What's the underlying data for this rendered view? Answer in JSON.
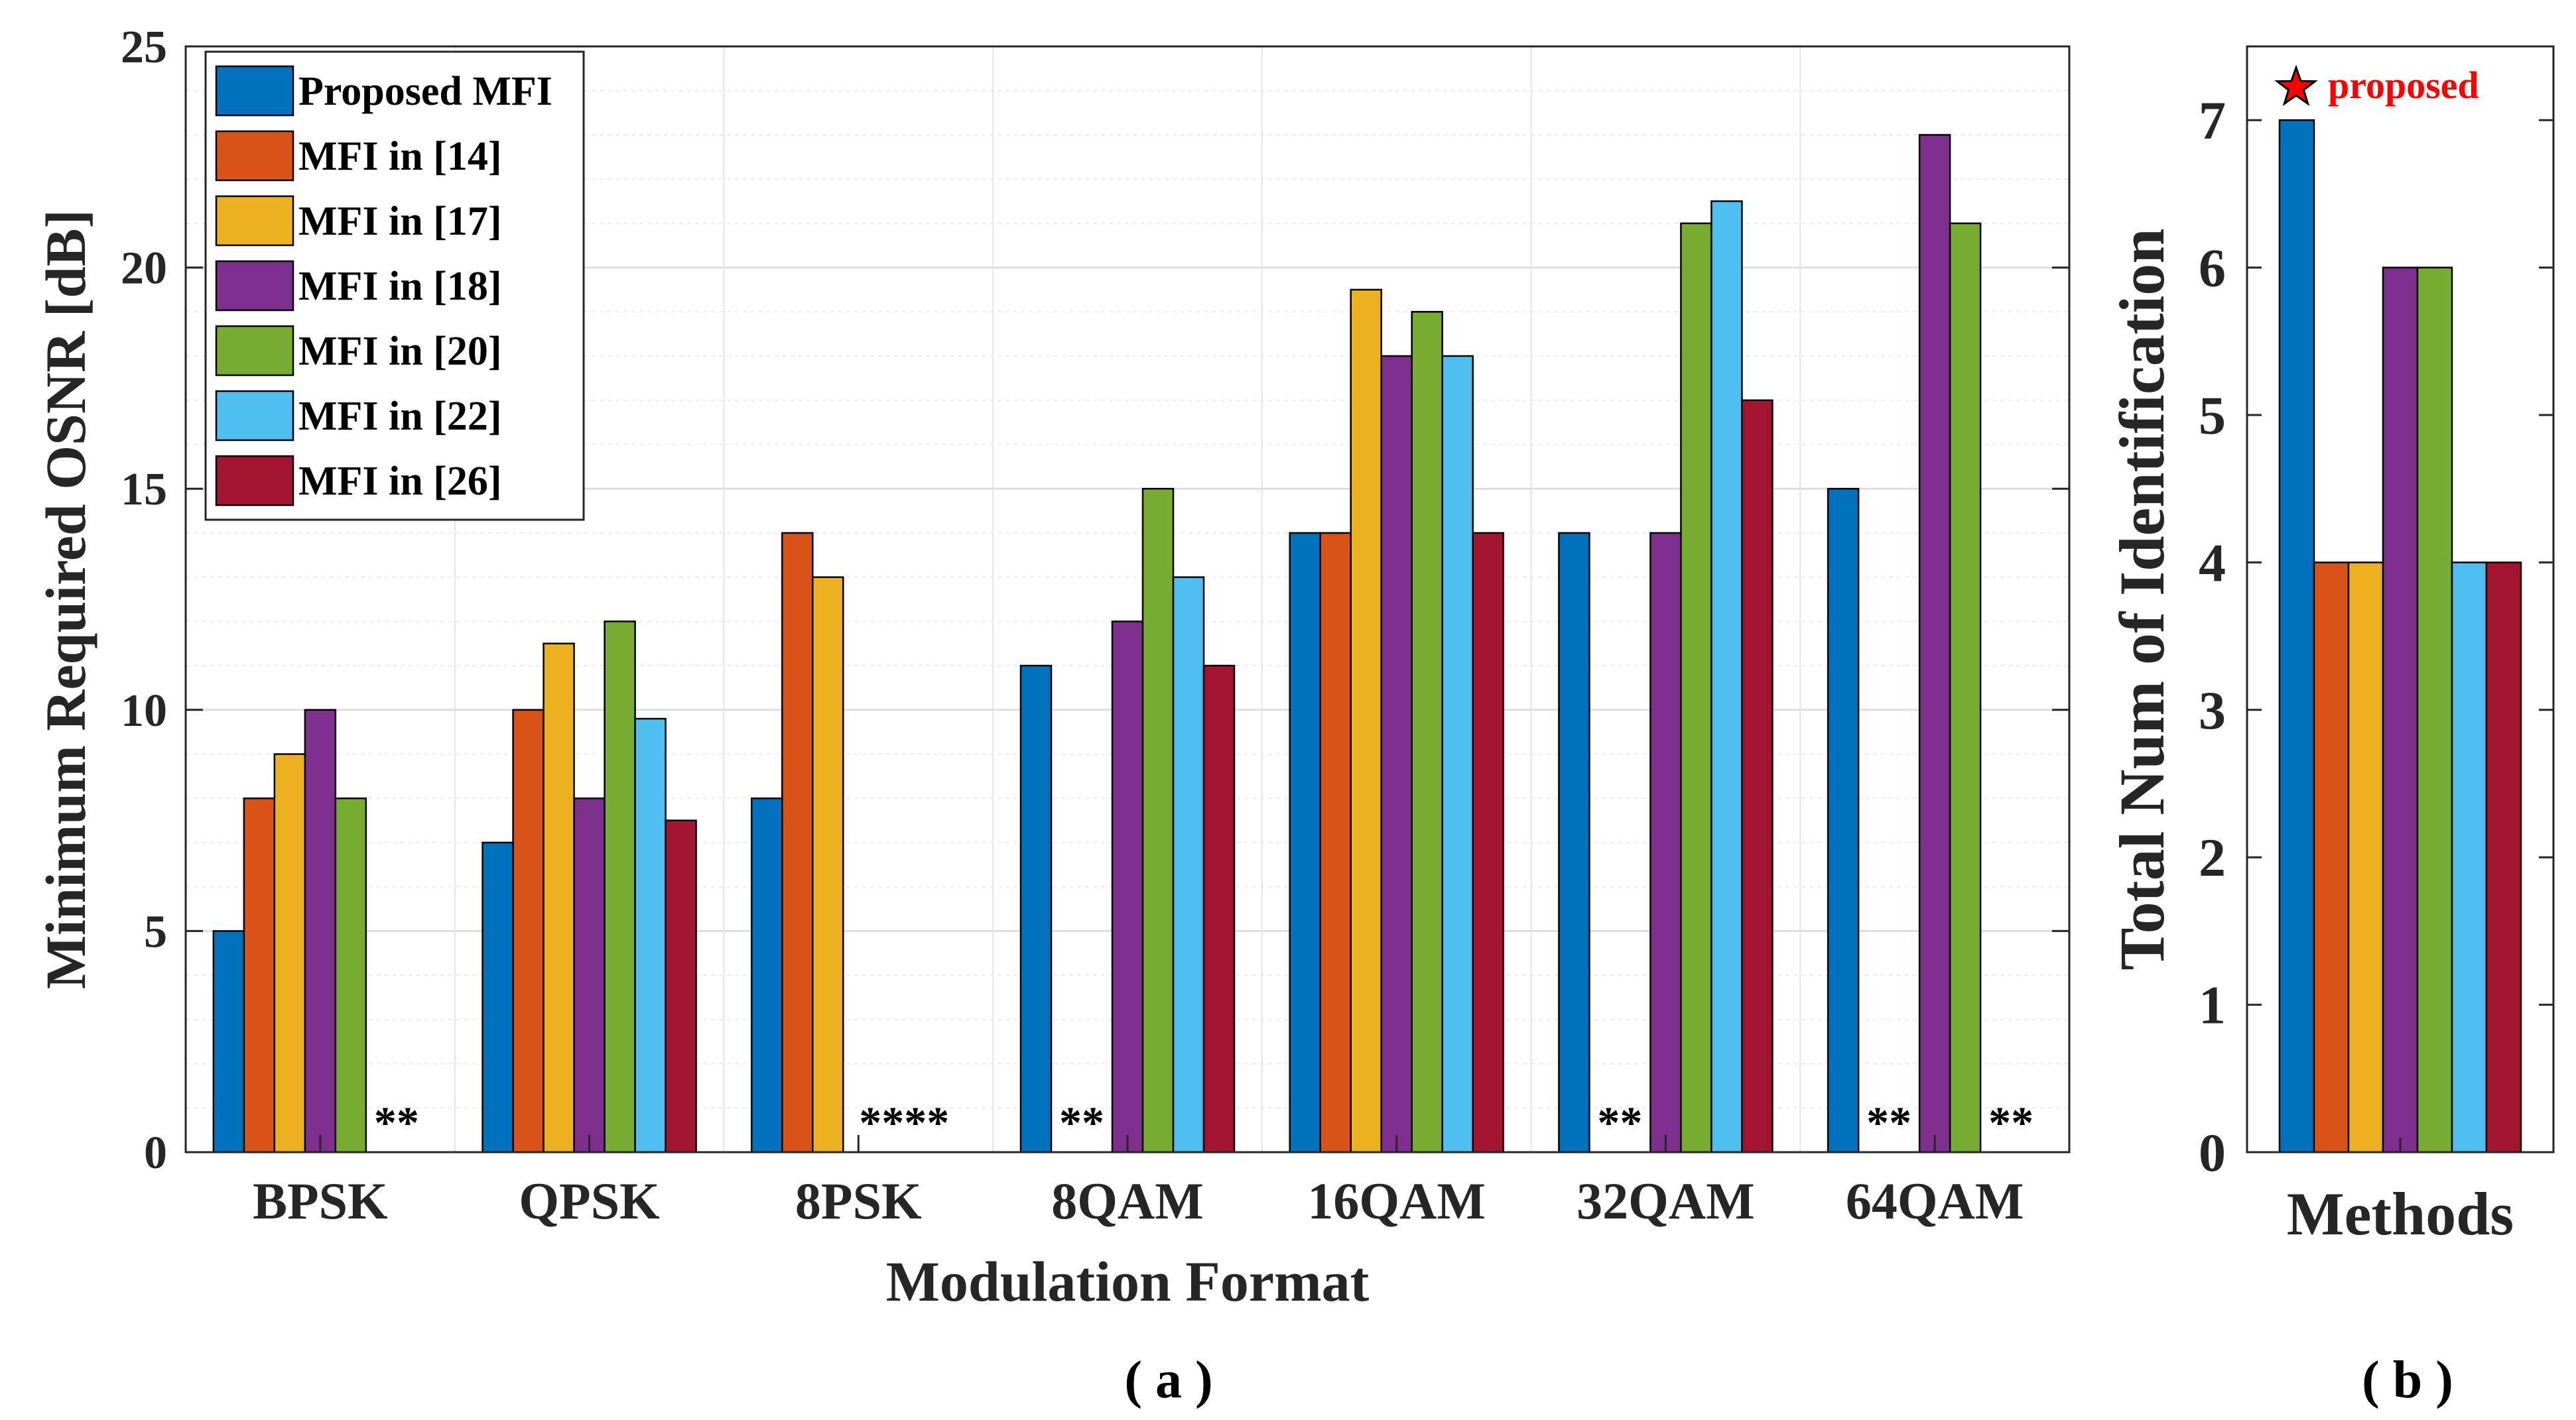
{
  "colors": [
    "#0072bd",
    "#d95319",
    "#edb120",
    "#7e2f8e",
    "#77ac30",
    "#4dbeee",
    "#a2142f"
  ],
  "chart_data": [
    {
      "type": "bar",
      "panel_label": "( a )",
      "title": "",
      "xlabel": "Modulation Format",
      "ylabel": "Minimum Required OSNR [dB]",
      "ylim": [
        0,
        25
      ],
      "yticks": [
        "0",
        "5",
        "10",
        "15",
        "20",
        "25"
      ],
      "grid": true,
      "legend_position": "top-left",
      "categories": [
        "BPSK",
        "QPSK",
        "8PSK",
        "8QAM",
        "16QAM",
        "32QAM",
        "64QAM"
      ],
      "series": [
        {
          "name": "Proposed MFI",
          "values": [
            5,
            7,
            8,
            11,
            14,
            14,
            15
          ]
        },
        {
          "name": "MFI in [14]",
          "values": [
            8,
            10,
            14,
            null,
            14,
            null,
            null
          ]
        },
        {
          "name": "MFI in [17]",
          "values": [
            9,
            11.5,
            13,
            null,
            19.5,
            null,
            null
          ]
        },
        {
          "name": "MFI in [18]",
          "values": [
            10,
            8,
            null,
            12,
            18,
            14,
            23
          ]
        },
        {
          "name": "MFI in [20]",
          "values": [
            8,
            12,
            null,
            15,
            19,
            21,
            21
          ]
        },
        {
          "name": "MFI in [22]",
          "values": [
            null,
            9.8,
            null,
            13,
            18,
            21.5,
            null
          ]
        },
        {
          "name": "MFI in [26]",
          "values": [
            null,
            7.5,
            null,
            11,
            14,
            17,
            null
          ]
        }
      ],
      "annotations": [
        {
          "category": "BPSK",
          "text": "**",
          "first_series": 5,
          "span": 2
        },
        {
          "category": "8PSK",
          "text": "****",
          "first_series": 3,
          "span": 4
        },
        {
          "category": "8QAM",
          "text": "**",
          "first_series": 1,
          "span": 2
        },
        {
          "category": "32QAM",
          "text": "**",
          "first_series": 1,
          "span": 2
        },
        {
          "category": "64QAM",
          "text": "**",
          "first_series": 1,
          "span": 2
        },
        {
          "category": "64QAM",
          "text": "**",
          "first_series": 5,
          "span": 2
        }
      ]
    },
    {
      "type": "bar",
      "panel_label": "( b )",
      "title": "",
      "xlabel": "Methods",
      "ylabel": "Total Num of Identification",
      "ylim": [
        0,
        7.5
      ],
      "yticks": [
        "0",
        "1",
        "2",
        "3",
        "4",
        "5",
        "6",
        "7"
      ],
      "grid": false,
      "categories": [
        "Proposed MFI",
        "MFI in [14]",
        "MFI in [17]",
        "MFI in [18]",
        "MFI in [20]",
        "MFI in [22]",
        "MFI in [26]"
      ],
      "values": [
        7,
        4,
        4,
        6,
        6,
        4,
        4
      ],
      "annotations": [
        {
          "text": "proposed",
          "color": "#ff0000",
          "marker": "star"
        }
      ]
    }
  ]
}
